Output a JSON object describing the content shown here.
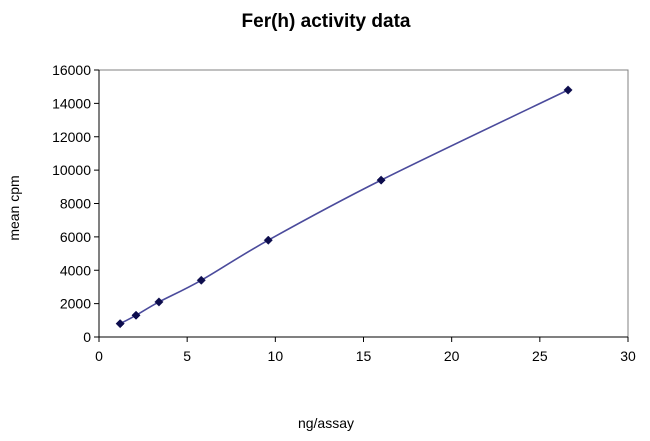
{
  "chart_data": {
    "type": "scatter",
    "title": "Fer(h) activity data",
    "xlabel": "ng/assay",
    "ylabel": "mean cpm",
    "xlim": [
      0,
      30
    ],
    "ylim": [
      0,
      16000
    ],
    "xticks": [
      0,
      5,
      10,
      15,
      20,
      25,
      30
    ],
    "yticks": [
      0,
      2000,
      4000,
      6000,
      8000,
      10000,
      12000,
      14000,
      16000
    ],
    "grid": false,
    "legend": "none",
    "series": [
      {
        "x": [
          1.2,
          2.1,
          3.4,
          5.8,
          9.6,
          16.0,
          26.6
        ],
        "y": [
          800,
          1300,
          2100,
          3400,
          5800,
          9400,
          14800
        ]
      }
    ],
    "colors": {
      "line": "#4b4b9c",
      "marker": "#0d0d4d",
      "axis": "#000000"
    }
  }
}
